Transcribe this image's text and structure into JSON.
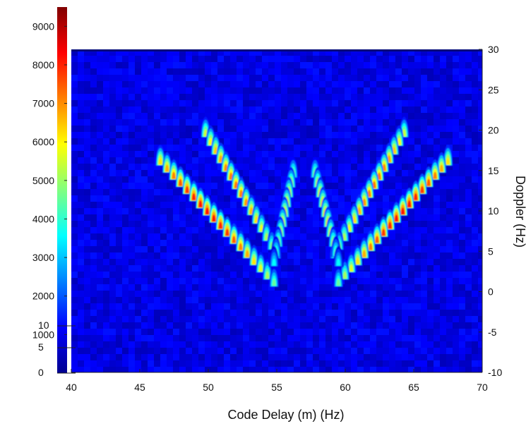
{
  "chart_data": {
    "type": "heatmap",
    "title": "",
    "xlabel": "Code Delay (m) (Hz)",
    "ylabel": "Doppler (Hz)",
    "x_ticks": [
      40,
      45,
      50,
      55,
      60,
      65,
      70
    ],
    "y_ticks": [
      -10,
      -5,
      0,
      5,
      10,
      15,
      20,
      25,
      30
    ],
    "xlim": [
      40,
      70
    ],
    "ylim": [
      -10,
      30
    ],
    "colorbar": {
      "ticks": [
        1000,
        2000,
        3000,
        4000,
        5000,
        6000,
        7000,
        8000,
        9000
      ],
      "range": [
        0,
        9500
      ],
      "colormap": "jet",
      "overlapping_labels": [
        "10",
        "5",
        "0"
      ]
    },
    "background_level": 900,
    "arms": [
      {
        "name": "",
        "from": [
          46.5,
          17.5
        ],
        "to": [
          54.8,
          2.5
        ],
        "peak": 8200
      },
      {
        "name": "",
        "from": [
          49.8,
          21.0
        ],
        "to": [
          55.0,
          6.0
        ],
        "peak": 7200
      },
      {
        "name": "",
        "from": [
          56.2,
          16.0
        ],
        "to": [
          54.8,
          5.0
        ],
        "peak": 6500
      },
      {
        "name": "",
        "from": [
          67.5,
          17.5
        ],
        "to": [
          59.5,
          2.5
        ],
        "peak": 8200
      },
      {
        "name": "",
        "from": [
          64.3,
          21.0
        ],
        "to": [
          59.2,
          6.0
        ],
        "peak": 7200
      },
      {
        "name": "",
        "from": [
          57.8,
          16.0
        ],
        "to": [
          59.5,
          5.0
        ],
        "peak": 6500
      }
    ],
    "colors": {
      "background": "#1e37c8",
      "low": "#00008f",
      "high": "#800000"
    }
  }
}
